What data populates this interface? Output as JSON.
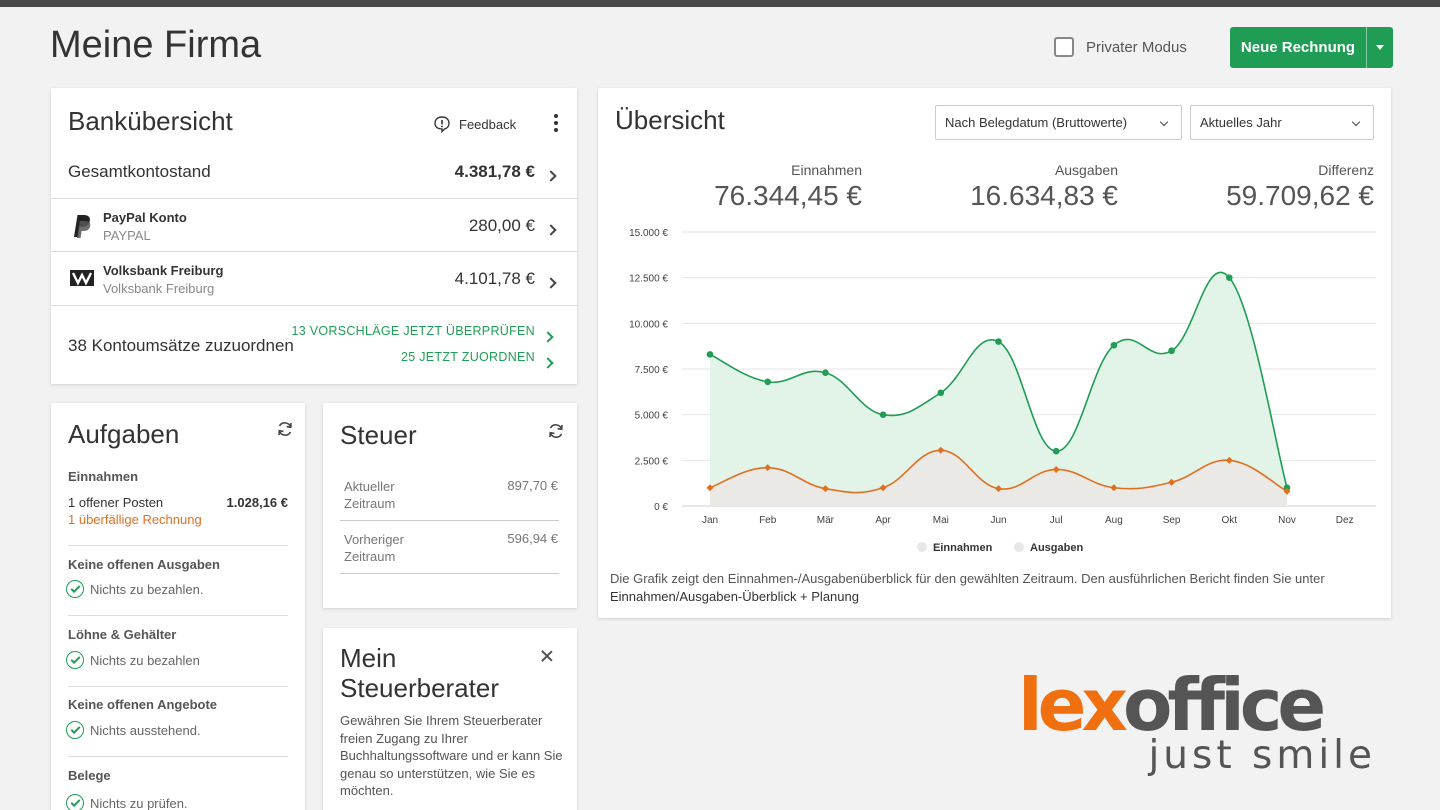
{
  "header": {
    "title": "Meine Firma",
    "private_mode_label": "Privater Modus",
    "new_invoice_label": "Neue Rechnung"
  },
  "bank": {
    "title": "Bankübersicht",
    "feedback_label": "Feedback",
    "total_label": "Gesamtkontostand",
    "total_value": "4.381,78 €",
    "accounts": [
      {
        "name": "PayPal Konto",
        "sub": "PAYPAL",
        "amount": "280,00 €",
        "icon": "paypal-icon"
      },
      {
        "name": "Volksbank Freiburg",
        "sub": "Volksbank Freiburg",
        "amount": "4.101,78 €",
        "icon": "volksbank-icon"
      }
    ],
    "unassigned_label": "38 Kontoumsätze zuzuordnen",
    "review_link": "13 VORSCHLÄGE JETZT ÜBERPRÜFEN",
    "assign_link": "25 JETZT ZUORDNEN"
  },
  "tasks": {
    "title": "Aufgaben",
    "income_heading": "Einnahmen",
    "open_items": "1  offener Posten",
    "open_items_value": "1.028,16 €",
    "overdue": "1  überfällige Rechnung",
    "sections": [
      {
        "heading": "Keine offenen Ausgaben",
        "text": "Nichts zu bezahlen."
      },
      {
        "heading": "Löhne & Gehälter",
        "text": "Nichts zu bezahlen"
      },
      {
        "heading": "Keine offenen Angebote",
        "text": "Nichts ausstehend."
      },
      {
        "heading": "Belege",
        "text": "Nichts zu prüfen."
      }
    ]
  },
  "tax": {
    "title": "Steuer",
    "rows": [
      {
        "label": "Aktueller Zeitraum",
        "value": "897,70 €"
      },
      {
        "label": "Vorheriger Zeitraum",
        "value": "596,94 €"
      }
    ]
  },
  "advisor": {
    "title": "Mein Steuerberater",
    "text": "Gewähren Sie Ihrem Steuerberater freien Zugang zu Ihrer Buchhaltungssoftware und er kann Sie genau so unterstützen, wie Sie es möchten."
  },
  "overview": {
    "title": "Übersicht",
    "filter_basis": "Nach Belegdatum (Bruttowerte)",
    "filter_period": "Aktuelles Jahr",
    "kpis": [
      {
        "label": "Einnahmen",
        "value": "76.344,45 €"
      },
      {
        "label": "Ausgaben",
        "value": "16.634,83 €"
      },
      {
        "label": "Differenz",
        "value": "59.709,62 €"
      }
    ],
    "note_text": "Die Grafik zeigt den Einnahmen-/Ausgabenüberblick für den gewählten Zeitraum. Den ausführlichen Bericht finden Sie unter",
    "note_link": "Einnahmen/Ausgaben-Überblick + Planung"
  },
  "chart_data": {
    "type": "area",
    "categories": [
      "Jan",
      "Feb",
      "Mär",
      "Apr",
      "Mai",
      "Jun",
      "Jul",
      "Aug",
      "Sep",
      "Okt",
      "Nov",
      "Dez"
    ],
    "ylim": [
      0,
      15000
    ],
    "yticks": [
      0,
      2500,
      5000,
      7500,
      10000,
      12500,
      15000
    ],
    "ytick_labels": [
      "0 €",
      "2.500 €",
      "5.000 €",
      "7.500 €",
      "10.000 €",
      "12.500 €",
      "15.000 €"
    ],
    "grid": true,
    "legend_position": "bottom-center",
    "series": [
      {
        "name": "Einnahmen",
        "color": "#1f9d55",
        "fill": "#dff2e6",
        "values": [
          8300,
          6800,
          7300,
          5000,
          6200,
          9000,
          3000,
          8800,
          8500,
          12500,
          1000,
          null
        ]
      },
      {
        "name": "Ausgaben",
        "color": "#e07020",
        "fill": "#ebe8e6",
        "values": [
          1000,
          2100,
          950,
          1000,
          3050,
          950,
          2000,
          1000,
          1300,
          2500,
          800,
          null
        ]
      }
    ]
  },
  "logo": {
    "part1": "lex",
    "part2": "office",
    "tagline": "just smile"
  }
}
